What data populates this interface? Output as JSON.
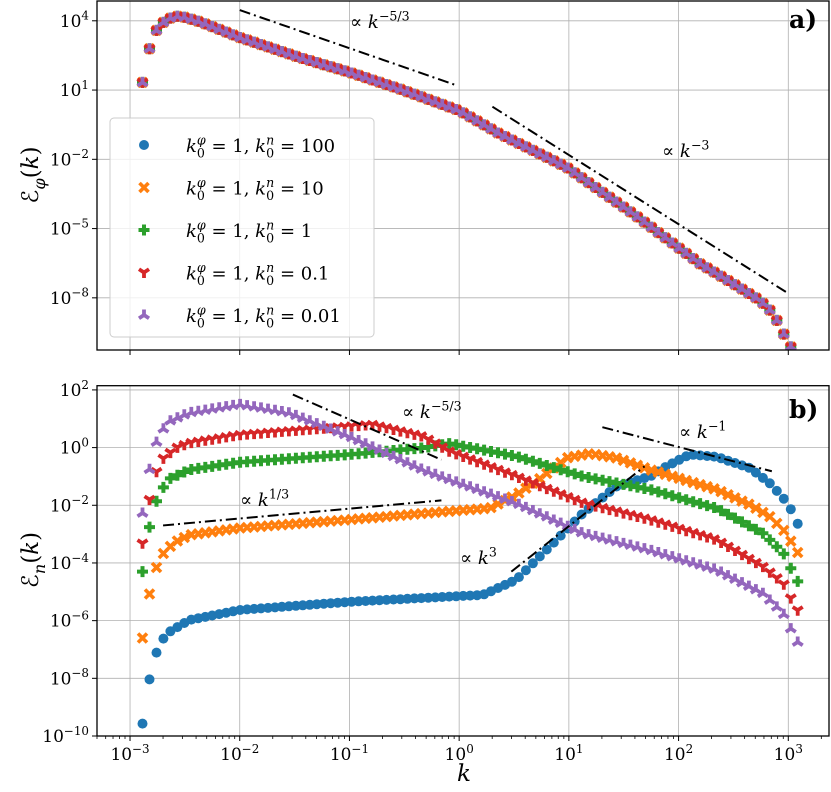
{
  "chart_data": [
    {
      "panel_label": "a)",
      "type": "scatter",
      "xscale": "log",
      "yscale": "log",
      "grid": true,
      "xlim": [
        0.0005,
        2350.0
      ],
      "ylim": [
        5.5e-11,
        72000.0
      ],
      "xlabel": "",
      "ylabel": "ℰ_{φ}(k)",
      "xticks": [
        0.001,
        0.01,
        0.1,
        1.0,
        10.0,
        100.0,
        1000.0
      ],
      "xtick_labels": [],
      "yticks": [
        10000.0,
        10.0,
        0.01,
        1e-05,
        1e-08
      ],
      "ytick_labels": [
        "10^{4}",
        "10^{1}",
        "10^{−2}",
        "10^{−5}",
        "10^{−8}"
      ],
      "legend": {
        "placement": "center-left"
      },
      "series": [
        {
          "name": "k_{0}^{φ} = 1, k_{0}^{n} = 100",
          "color": "#1f77b4",
          "marker": "circle",
          "points": [
            [
              0.0013,
              21.4
            ],
            [
              0.00152,
              776
            ],
            [
              0.00175,
              4070
            ],
            [
              0.00214,
              11700.0
            ],
            [
              0.00282,
              16600.0
            ],
            [
              0.00427,
              9300.0
            ],
            [
              0.01,
              1900.0
            ],
            [
              0.0351,
              257
            ],
            [
              0.1,
              58.9
            ],
            [
              0.286,
              11.2
            ],
            [
              1.0,
              1.29
            ],
            [
              2.34,
              0.126
            ],
            [
              9.5,
              0.0046
            ],
            [
              38.5,
              4.4e-05
            ],
            [
              157,
              3e-07
            ],
            [
              316,
              4.1e-08
            ],
            [
              550,
              7.8e-09
            ],
            [
              730,
              2.1e-09
            ],
            [
              902,
              2.9e-10
            ],
            [
              1052,
              7.6e-11
            ],
            [
              1219,
              1.6e-11
            ]
          ]
        },
        {
          "name": "k_{0}^{φ} = 1, k_{0}^{n} = 10",
          "color": "#ff7f0e",
          "marker": "x",
          "points": [
            [
              0.0013,
              21.4
            ],
            [
              0.00152,
              776
            ],
            [
              0.00175,
              4070
            ],
            [
              0.00214,
              11700.0
            ],
            [
              0.00282,
              16600.0
            ],
            [
              0.00427,
              9300.0
            ],
            [
              0.01,
              1900.0
            ],
            [
              0.0351,
              257
            ],
            [
              0.1,
              58.9
            ],
            [
              0.286,
              11.2
            ],
            [
              1.0,
              1.29
            ],
            [
              2.34,
              0.126
            ],
            [
              9.5,
              0.0046
            ],
            [
              38.5,
              4.4e-05
            ],
            [
              157,
              3e-07
            ],
            [
              316,
              4.1e-08
            ],
            [
              550,
              7.8e-09
            ],
            [
              730,
              2.1e-09
            ],
            [
              902,
              2.9e-10
            ],
            [
              1052,
              7.6e-11
            ],
            [
              1219,
              1.6e-11
            ]
          ]
        },
        {
          "name": "k_{0}^{φ} = 1, k_{0}^{n} = 1",
          "color": "#2ca02c",
          "marker": "plus",
          "points": [
            [
              0.0013,
              21.4
            ],
            [
              0.00152,
              776
            ],
            [
              0.00175,
              4070
            ],
            [
              0.00214,
              11700.0
            ],
            [
              0.00282,
              16600.0
            ],
            [
              0.00427,
              9300.0
            ],
            [
              0.01,
              1900.0
            ],
            [
              0.0351,
              257
            ],
            [
              0.1,
              58.9
            ],
            [
              0.286,
              11.2
            ],
            [
              1.0,
              1.29
            ],
            [
              2.34,
              0.126
            ],
            [
              9.5,
              0.0046
            ],
            [
              38.5,
              4.4e-05
            ],
            [
              157,
              3e-07
            ],
            [
              316,
              4.1e-08
            ],
            [
              550,
              7.8e-09
            ],
            [
              730,
              2.1e-09
            ],
            [
              902,
              2.9e-10
            ],
            [
              1052,
              7.6e-11
            ],
            [
              1219,
              1.6e-11
            ]
          ]
        },
        {
          "name": "k_{0}^{φ} = 1, k_{0}^{n} = 0.1",
          "color": "#d62728",
          "marker": "tri_down",
          "points": [
            [
              0.0013,
              21.4
            ],
            [
              0.00152,
              776
            ],
            [
              0.00175,
              4070
            ],
            [
              0.00214,
              11700.0
            ],
            [
              0.00282,
              16600.0
            ],
            [
              0.00427,
              9300.0
            ],
            [
              0.01,
              1900.0
            ],
            [
              0.0351,
              257
            ],
            [
              0.1,
              58.9
            ],
            [
              0.286,
              11.2
            ],
            [
              1.0,
              1.29
            ],
            [
              2.34,
              0.126
            ],
            [
              9.5,
              0.0046
            ],
            [
              38.5,
              4.4e-05
            ],
            [
              157,
              3e-07
            ],
            [
              316,
              4.1e-08
            ],
            [
              550,
              7.8e-09
            ],
            [
              730,
              2.1e-09
            ],
            [
              902,
              2.9e-10
            ],
            [
              1052,
              7.6e-11
            ],
            [
              1219,
              1.6e-11
            ]
          ]
        },
        {
          "name": "k_{0}^{φ} = 1, k_{0}^{n} = 0.01",
          "color": "#9467bd",
          "marker": "tri_up",
          "points": [
            [
              0.0013,
              21.4
            ],
            [
              0.00152,
              776
            ],
            [
              0.00175,
              4070
            ],
            [
              0.00214,
              11700.0
            ],
            [
              0.00282,
              16600.0
            ],
            [
              0.00427,
              9300.0
            ],
            [
              0.01,
              1900.0
            ],
            [
              0.0351,
              257
            ],
            [
              0.1,
              58.9
            ],
            [
              0.286,
              11.2
            ],
            [
              1.0,
              1.29
            ],
            [
              2.34,
              0.126
            ],
            [
              9.5,
              0.0046
            ],
            [
              38.5,
              4.4e-05
            ],
            [
              157,
              3e-07
            ],
            [
              316,
              4.1e-08
            ],
            [
              550,
              7.8e-09
            ],
            [
              730,
              2.1e-09
            ],
            [
              902,
              2.9e-10
            ],
            [
              1052,
              7.6e-11
            ],
            [
              1219,
              1.6e-11
            ]
          ]
        }
      ],
      "reference_lines": [
        {
          "label": "∝ k^{−5/3}",
          "points": [
            [
              0.01,
              29000.0
            ],
            [
              0.912,
              17
            ]
          ]
        },
        {
          "label": "∝ k^{−3}",
          "points": [
            [
              2.01,
              1.9
            ],
            [
              1000,
              1.55e-08
            ]
          ]
        }
      ]
    },
    {
      "panel_label": "b)",
      "type": "scatter",
      "xscale": "log",
      "yscale": "log",
      "grid": true,
      "xlim": [
        0.0005,
        2350.0
      ],
      "ylim": [
        1e-10,
        140.0
      ],
      "xlabel": "k",
      "ylabel": "ℰ_{n}(k)",
      "xticks": [
        0.001,
        0.01,
        0.1,
        1.0,
        10.0,
        100.0,
        1000.0
      ],
      "xtick_labels": [
        "10^{−3}",
        "10^{−2}",
        "10^{−1}",
        "10^{0}",
        "10^{1}",
        "10^{2}",
        "10^{3}"
      ],
      "yticks": [
        100.0,
        1.0,
        0.01,
        0.0001,
        1e-06,
        1e-08,
        1e-10
      ],
      "ytick_labels": [
        "10^{2}",
        "10^{0}",
        "10^{−2}",
        "10^{−4}",
        "10^{−6}",
        "10^{−8}",
        "10^{−10}"
      ],
      "series": [
        {
          "name": "k_{0}^{φ} = 1, k_{0}^{n} = 100",
          "color": "#1f77b4",
          "marker": "circle",
          "points": [
            [
              0.0013,
              2.7e-10
            ],
            [
              0.00152,
              1.17e-08
            ],
            [
              0.00175,
              8.3e-08
            ],
            [
              0.002,
              2.3e-07
            ],
            [
              0.00229,
              4.1e-07
            ],
            [
              0.00347,
              1.05e-06
            ],
            [
              0.01,
              2.34e-06
            ],
            [
              0.1,
              4.5e-06
            ],
            [
              0.818,
              6.8e-06
            ],
            [
              1.64,
              7.8e-06
            ],
            [
              3.31,
              2.6e-05
            ],
            [
              6.7,
              0.00037
            ],
            [
              13.5,
              0.0054
            ],
            [
              27.2,
              0.045
            ],
            [
              55,
              0.1
            ],
            [
              77.6,
              0.224
            ],
            [
              126,
              0.575
            ],
            [
              222,
              0.48
            ],
            [
              447,
              0.195
            ],
            [
              676,
              0.059
            ],
            [
              902,
              0.0178
            ],
            [
              1052,
              0.0074
            ],
            [
              1219,
              0.0023
            ]
          ]
        },
        {
          "name": "k_{0}^{φ} = 1, k_{0}^{n} = 10",
          "color": "#ff7f0e",
          "marker": "x",
          "points": [
            [
              0.0013,
              2.5e-07
            ],
            [
              0.00152,
              1.07e-05
            ],
            [
              0.00175,
              7.4e-05
            ],
            [
              0.00206,
              0.00025
            ],
            [
              0.00263,
              0.00055
            ],
            [
              0.00347,
              0.00093
            ],
            [
              0.01,
              0.00162
            ],
            [
              0.1,
              0.00316
            ],
            [
              0.818,
              0.0062
            ],
            [
              1.9,
              0.0079
            ],
            [
              3.31,
              0.023
            ],
            [
              5.82,
              0.1
            ],
            [
              9.5,
              0.437
            ],
            [
              15.5,
              0.62
            ],
            [
              27.2,
              0.437
            ],
            [
              55,
              0.17
            ],
            [
              110,
              0.078
            ],
            [
              222,
              0.035
            ],
            [
              447,
              0.0105
            ],
            [
              676,
              0.0041
            ],
            [
              902,
              0.00141
            ],
            [
              1035,
              0.00063
            ],
            [
              1219,
              0.00023
            ]
          ]
        },
        {
          "name": "k_{0}^{φ} = 1, k_{0}^{n} = 1",
          "color": "#2ca02c",
          "marker": "plus",
          "points": [
            [
              0.0013,
              5e-05
            ],
            [
              0.00152,
              0.00224
            ],
            [
              0.00175,
              0.0148
            ],
            [
              0.002,
              0.04
            ],
            [
              0.00229,
              0.083
            ],
            [
              0.00347,
              0.17
            ],
            [
              0.01,
              0.31
            ],
            [
              0.1,
              0.575
            ],
            [
              0.468,
              0.98
            ],
            [
              0.818,
              1.38
            ],
            [
              3.31,
              0.5
            ],
            [
              13.5,
              0.1
            ],
            [
              55,
              0.035
            ],
            [
              222,
              0.0079
            ],
            [
              589,
              0.00107
            ],
            [
              902,
              0.00022
            ],
            [
              1035,
              7.4e-05
            ],
            [
              1219,
              2.3e-05
            ]
          ]
        },
        {
          "name": "k_{0}^{φ} = 1, k_{0}^{n} = 0.1",
          "color": "#d62728",
          "marker": "tri_down",
          "points": [
            [
              0.0013,
              0.00048
            ],
            [
              0.00152,
              0.02
            ],
            [
              0.00173,
              0.138
            ],
            [
              0.002,
              0.41
            ],
            [
              0.00263,
              0.98
            ],
            [
              0.00347,
              1.45
            ],
            [
              0.01,
              2.8
            ],
            [
              0.1,
              5.5
            ],
            [
              0.162,
              6.3
            ],
            [
              0.468,
              2.45
            ],
            [
              0.818,
              0.74
            ],
            [
              3.31,
              0.1
            ],
            [
              13.5,
              0.012
            ],
            [
              55,
              0.00316
            ],
            [
              222,
              0.00063
            ],
            [
              589,
              7.4e-05
            ],
            [
              902,
              1.95e-05
            ],
            [
              1035,
              6.8e-06
            ],
            [
              1219,
              2.3e-06
            ]
          ]
        },
        {
          "name": "k_{0}^{φ} = 1, k_{0}^{n} = 0.01",
          "color": "#9467bd",
          "marker": "tri_up",
          "points": [
            [
              0.0013,
              0.0054
            ],
            [
              0.00152,
              0.224
            ],
            [
              0.00175,
              1.66
            ],
            [
              0.002,
              4.3
            ],
            [
              0.00229,
              8.3
            ],
            [
              0.00347,
              16.2
            ],
            [
              0.01,
              31.6
            ],
            [
              0.0282,
              16.2
            ],
            [
              0.1,
              2.45
            ],
            [
              0.468,
              0.17
            ],
            [
              0.818,
              0.078
            ],
            [
              3.31,
              0.012
            ],
            [
              13.5,
              0.00107
            ],
            [
              55,
              0.00028
            ],
            [
              222,
              5.8e-05
            ],
            [
              589,
              8.9e-06
            ],
            [
              902,
              1.78e-06
            ],
            [
              1035,
              6e-07
            ],
            [
              1219,
              1.82e-07
            ]
          ]
        }
      ],
      "reference_lines": [
        {
          "label": "∝ k^{−5/3}",
          "points": [
            [
              0.0305,
              69
            ],
            [
              0.689,
              0.38
            ]
          ]
        },
        {
          "label": "∝ k^{1/3}",
          "points": [
            [
              0.002,
              0.002
            ],
            [
              0.689,
              0.0148
            ]
          ]
        },
        {
          "label": "∝ k^{3}",
          "points": [
            [
              2.99,
              5e-05
            ],
            [
              49,
              0.224
            ]
          ]
        },
        {
          "label": "∝ k^{−1}",
          "points": [
            [
              20.2,
              5.1
            ],
            [
              708,
              0.151
            ]
          ]
        }
      ]
    }
  ]
}
